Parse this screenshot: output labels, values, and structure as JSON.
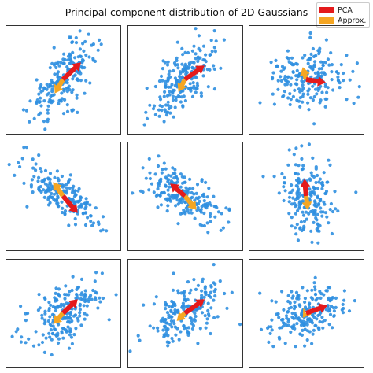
{
  "title": "Principal component distribution of 2D Gaussians",
  "legend": {
    "items": [
      {
        "label": "PCA",
        "color": "#e41a1c"
      },
      {
        "label": "Approx.",
        "color": "#f5a623"
      }
    ],
    "placement": "top-right"
  },
  "colors": {
    "points": "#2f8fe0",
    "pca": "#e41a1c",
    "approx": "#f5a623",
    "frame": "#000000"
  },
  "chart_data": [
    {
      "type": "scatter",
      "title": "",
      "xlabel": "",
      "ylabel": "",
      "grid": false,
      "ticks": false,
      "xlim": [
        -3.5,
        3.5
      ],
      "ylim": [
        -3.5,
        3.5
      ],
      "point_count": 200,
      "cov": {
        "sx": 1.0,
        "sy": 1.3,
        "rho": 0.7
      },
      "pca_arrow": {
        "from": [
          0,
          0
        ],
        "to": [
          1.1,
          1.1
        ]
      },
      "approx_arrow": {
        "from": [
          0,
          0
        ],
        "to": [
          -0.5,
          -0.9
        ]
      }
    },
    {
      "type": "scatter",
      "title": "",
      "xlabel": "",
      "ylabel": "",
      "grid": false,
      "ticks": false,
      "xlim": [
        -3.5,
        3.5
      ],
      "ylim": [
        -3.5,
        3.5
      ],
      "point_count": 200,
      "cov": {
        "sx": 1.0,
        "sy": 1.3,
        "rho": 0.6
      },
      "pca_arrow": {
        "from": [
          0,
          0
        ],
        "to": [
          1.2,
          0.9
        ]
      },
      "approx_arrow": {
        "from": [
          0,
          0
        ],
        "to": [
          -0.4,
          -0.8
        ]
      }
    },
    {
      "type": "scatter",
      "title": "",
      "xlabel": "",
      "ylabel": "",
      "grid": false,
      "ticks": false,
      "xlim": [
        -3.5,
        3.5
      ],
      "ylim": [
        -3.5,
        3.5
      ],
      "point_count": 200,
      "cov": {
        "sx": 1.1,
        "sy": 1.0,
        "rho": -0.05
      },
      "pca_arrow": {
        "from": [
          0,
          0
        ],
        "to": [
          1.2,
          -0.2
        ]
      },
      "approx_arrow": {
        "from": [
          0,
          0
        ],
        "to": [
          -0.2,
          0.8
        ]
      }
    },
    {
      "type": "scatter",
      "title": "",
      "xlabel": "",
      "ylabel": "",
      "grid": false,
      "ticks": false,
      "xlim": [
        -3.5,
        3.5
      ],
      "ylim": [
        -3.5,
        3.5
      ],
      "point_count": 200,
      "cov": {
        "sx": 1.2,
        "sy": 1.0,
        "rho": -0.75
      },
      "pca_arrow": {
        "from": [
          0,
          0
        ],
        "to": [
          0.9,
          -1.1
        ]
      },
      "approx_arrow": {
        "from": [
          0,
          0
        ],
        "to": [
          -0.6,
          0.9
        ]
      }
    },
    {
      "type": "scatter",
      "title": "",
      "xlabel": "",
      "ylabel": "",
      "grid": false,
      "ticks": false,
      "xlim": [
        -3.5,
        3.5
      ],
      "ylim": [
        -3.5,
        3.5
      ],
      "point_count": 200,
      "cov": {
        "sx": 1.2,
        "sy": 0.9,
        "rho": -0.55
      },
      "pca_arrow": {
        "from": [
          0,
          0
        ],
        "to": [
          -0.9,
          0.8
        ]
      },
      "approx_arrow": {
        "from": [
          0,
          0
        ],
        "to": [
          0.7,
          -0.9
        ]
      }
    },
    {
      "type": "scatter",
      "title": "",
      "xlabel": "",
      "ylabel": "",
      "grid": false,
      "ticks": false,
      "xlim": [
        -3.5,
        3.5
      ],
      "ylim": [
        -3.5,
        3.5
      ],
      "point_count": 200,
      "cov": {
        "sx": 0.8,
        "sy": 1.3,
        "rho": -0.1
      },
      "pca_arrow": {
        "from": [
          0,
          0
        ],
        "to": [
          -0.1,
          1.1
        ]
      },
      "approx_arrow": {
        "from": [
          0,
          0
        ],
        "to": [
          0.1,
          -0.9
        ]
      }
    },
    {
      "type": "scatter",
      "title": "",
      "xlabel": "",
      "ylabel": "",
      "grid": false,
      "ticks": false,
      "xlim": [
        -3.5,
        3.5
      ],
      "ylim": [
        -3.5,
        3.5
      ],
      "point_count": 200,
      "cov": {
        "sx": 1.2,
        "sy": 1.1,
        "rho": 0.55
      },
      "pca_arrow": {
        "from": [
          0,
          0
        ],
        "to": [
          0.9,
          0.9
        ]
      },
      "approx_arrow": {
        "from": [
          0,
          0
        ],
        "to": [
          -0.6,
          -0.7
        ]
      }
    },
    {
      "type": "scatter",
      "title": "",
      "xlabel": "",
      "ylabel": "",
      "grid": false,
      "ticks": false,
      "xlim": [
        -3.5,
        3.5
      ],
      "ylim": [
        -3.5,
        3.5
      ],
      "point_count": 200,
      "cov": {
        "sx": 1.3,
        "sy": 1.1,
        "rho": 0.55
      },
      "pca_arrow": {
        "from": [
          0,
          0
        ],
        "to": [
          1.2,
          0.9
        ]
      },
      "approx_arrow": {
        "from": [
          0,
          0
        ],
        "to": [
          -0.5,
          -0.5
        ]
      }
    },
    {
      "type": "scatter",
      "title": "",
      "xlabel": "",
      "ylabel": "",
      "grid": false,
      "ticks": false,
      "xlim": [
        -3.5,
        3.5
      ],
      "ylim": [
        -3.5,
        3.5
      ],
      "point_count": 200,
      "cov": {
        "sx": 1.2,
        "sy": 0.9,
        "rho": 0.35
      },
      "pca_arrow": {
        "from": [
          0,
          0
        ],
        "to": [
          1.3,
          0.5
        ]
      },
      "approx_arrow": {
        "from": [
          0,
          0
        ],
        "to": [
          -0.2,
          -0.3
        ]
      }
    }
  ]
}
